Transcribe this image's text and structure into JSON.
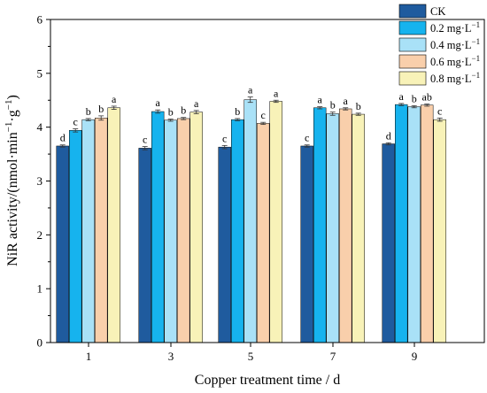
{
  "chart_data": {
    "type": "bar",
    "xlabel": "Copper treatment time / d",
    "ylabel": "NiR activity/(nmol·min",
    "ylabel_sup1": "−1",
    "ylabel_mid": "·g",
    "ylabel_sup2": "−1",
    "ylabel_end": ")",
    "categories": [
      "1",
      "3",
      "5",
      "7",
      "9"
    ],
    "ylim": [
      0,
      6
    ],
    "yticks": [
      "0",
      "1",
      "2",
      "3",
      "4",
      "5",
      "6"
    ],
    "legend_position": "top-right",
    "grid": false,
    "series": [
      {
        "name": "CK",
        "unit": "",
        "color": "#1f5b9e",
        "values": [
          3.65,
          3.61,
          3.63,
          3.65,
          3.69
        ],
        "errors": [
          0.02,
          0.03,
          0.03,
          0.02,
          0.02
        ],
        "labels": [
          "d",
          "c",
          "c",
          "c",
          "d"
        ]
      },
      {
        "name": "0.2 mg·L",
        "unit": "−1",
        "color": "#16b3ee",
        "values": [
          3.94,
          4.29,
          4.14,
          4.36,
          4.42
        ],
        "errors": [
          0.03,
          0.03,
          0.02,
          0.02,
          0.02
        ],
        "labels": [
          "c",
          "a",
          "b",
          "a",
          "a"
        ]
      },
      {
        "name": "0.4 mg·L",
        "unit": "−1",
        "color": "#a9e1f7",
        "values": [
          4.14,
          4.13,
          4.51,
          4.25,
          4.38
        ],
        "errors": [
          0.02,
          0.02,
          0.05,
          0.03,
          0.02
        ],
        "labels": [
          "b",
          "b",
          "a",
          "b",
          "b"
        ]
      },
      {
        "name": "0.6 mg·L",
        "unit": "−1",
        "color": "#f9cfab",
        "values": [
          4.17,
          4.16,
          4.07,
          4.34,
          4.41
        ],
        "errors": [
          0.04,
          0.02,
          0.02,
          0.02,
          0.02
        ],
        "labels": [
          "b",
          "b",
          "c",
          "a",
          "ab"
        ]
      },
      {
        "name": "0.8 mg·L",
        "unit": "−1",
        "color": "#f8f2b8",
        "values": [
          4.36,
          4.28,
          4.48,
          4.24,
          4.14
        ],
        "errors": [
          0.03,
          0.03,
          0.02,
          0.02,
          0.03
        ],
        "labels": [
          "a",
          "a",
          "a",
          "b",
          "c"
        ]
      }
    ]
  }
}
